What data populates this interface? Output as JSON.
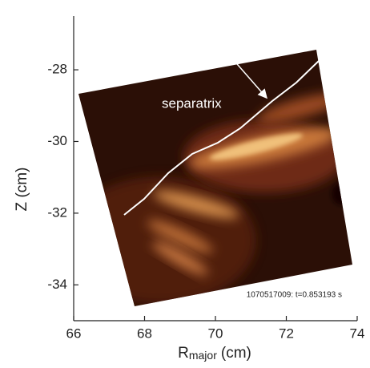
{
  "chart_data": {
    "type": "image",
    "xlabel": {
      "main": "R",
      "sub": "major",
      "unit": "(cm)"
    },
    "ylabel": "Z (cm)",
    "xlim": [
      66,
      74
    ],
    "xticks": [
      66,
      68,
      70,
      72,
      74
    ],
    "ylim": [
      -35,
      -26.5
    ],
    "yticks": [
      -28,
      -30,
      -32,
      -34
    ],
    "annotations": [
      "separatrix",
      "1070517009: t=0.853193 s"
    ]
  }
}
